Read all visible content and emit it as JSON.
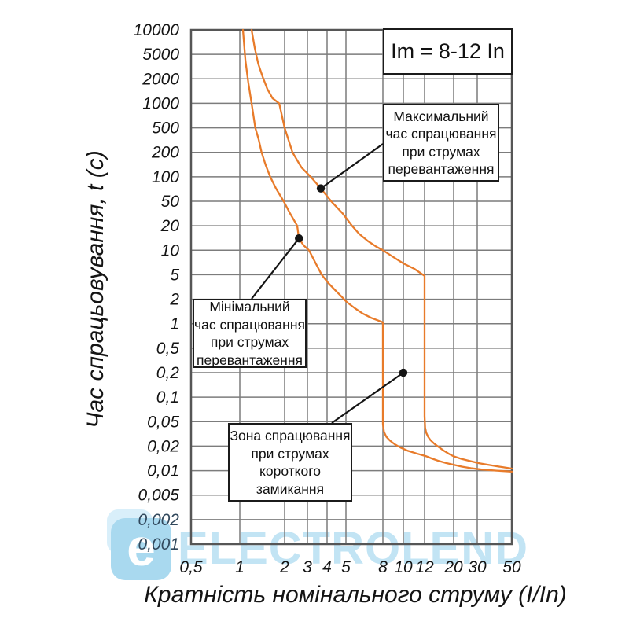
{
  "chart_data": {
    "type": "line",
    "title": "Im = 8-12 In",
    "xlabel": "Кратність номінального струму (I/In)",
    "ylabel": "Час спрацьовування, t (c)",
    "x_scale": "log",
    "y_scale": "log",
    "grid": true,
    "legend_position": "none",
    "x_tick_values": [
      0.5,
      1,
      2,
      3,
      4,
      5,
      8,
      10,
      12,
      20,
      30,
      50
    ],
    "x_tick_labels": [
      "0,5",
      "1",
      "2",
      "3",
      "4",
      "5",
      "8",
      "10",
      "12",
      "20",
      "30",
      "50"
    ],
    "y_tick_values": [
      10000,
      5000,
      2000,
      1000,
      500,
      200,
      100,
      50,
      20,
      10,
      5,
      2,
      1,
      0.5,
      0.2,
      0.1,
      0.05,
      0.02,
      0.01,
      0.005,
      0.002,
      0.001
    ],
    "y_tick_labels": [
      "10000",
      "5000",
      "2000",
      "1000",
      "500",
      "200",
      "100",
      "50",
      "20",
      "10",
      "5",
      "2",
      "1",
      "0,5",
      "0,2",
      "0,1",
      "0,05",
      "0,02",
      "0,01",
      "0,005",
      "0,002",
      "0,001"
    ],
    "tinted_y_tick_labels": [
      "0,002",
      "0,001"
    ],
    "series": [
      {
        "name": "Мінімальний час спрацювання",
        "color": "#e87b2a",
        "points": [
          [
            1.05,
            10000
          ],
          [
            1.09,
            4000
          ],
          [
            1.14,
            1800
          ],
          [
            1.2,
            1000
          ],
          [
            1.27,
            500
          ],
          [
            1.34,
            320
          ],
          [
            1.4,
            200
          ],
          [
            1.49,
            140
          ],
          [
            1.6,
            100
          ],
          [
            1.75,
            72
          ],
          [
            1.97,
            50
          ],
          [
            2.2,
            32
          ],
          [
            2.5,
            20
          ],
          [
            2.58,
            14
          ],
          [
            2.8,
            11.5
          ],
          [
            3.07,
            10
          ],
          [
            3.4,
            6.8
          ],
          [
            3.7,
            5.0
          ],
          [
            4.05,
            3.7
          ],
          [
            4.4,
            2.8
          ],
          [
            4.75,
            2.2
          ],
          [
            5.05,
            1.85
          ],
          [
            5.6,
            1.55
          ],
          [
            6.2,
            1.33
          ],
          [
            6.9,
            1.18
          ],
          [
            7.5,
            1.1
          ],
          [
            8,
            1.04
          ],
          [
            8,
            0.046
          ],
          [
            8.1,
            0.034
          ],
          [
            8.3,
            0.0285
          ],
          [
            8.65,
            0.0245
          ],
          [
            9.1,
            0.0215
          ],
          [
            9.7,
            0.0192
          ],
          [
            10.4,
            0.0175
          ],
          [
            11.3,
            0.0161
          ],
          [
            12.4,
            0.015
          ],
          [
            13.8,
            0.014
          ],
          [
            15.5,
            0.0131
          ],
          [
            17.5,
            0.0124
          ],
          [
            20,
            0.0118
          ],
          [
            23,
            0.0112
          ],
          [
            27,
            0.0107
          ],
          [
            32,
            0.0103
          ],
          [
            40,
            0.01
          ],
          [
            50,
            0.0097
          ]
        ]
      },
      {
        "name": "Максимальний час спрацювання",
        "color": "#e87b2a",
        "points": [
          [
            1.2,
            10000
          ],
          [
            1.26,
            6000
          ],
          [
            1.33,
            3500
          ],
          [
            1.42,
            2200
          ],
          [
            1.53,
            1500
          ],
          [
            1.66,
            1150
          ],
          [
            1.84,
            1000
          ],
          [
            2.0,
            500
          ],
          [
            2.3,
            200
          ],
          [
            2.7,
            130
          ],
          [
            3.15,
            100
          ],
          [
            3.65,
            72
          ],
          [
            4.2,
            50
          ],
          [
            4.8,
            32
          ],
          [
            5.4,
            20
          ],
          [
            5.9,
            16
          ],
          [
            6.6,
            13
          ],
          [
            7.3,
            11.2
          ],
          [
            8,
            10
          ],
          [
            9,
            8.2
          ],
          [
            10,
            6.9
          ],
          [
            11,
            5.9
          ],
          [
            12,
            4.8
          ],
          [
            12,
            0.058
          ],
          [
            12.12,
            0.04
          ],
          [
            12.35,
            0.033
          ],
          [
            12.75,
            0.0285
          ],
          [
            13.3,
            0.025
          ],
          [
            14.2,
            0.022
          ],
          [
            15.3,
            0.0196
          ],
          [
            16.8,
            0.0176
          ],
          [
            18.5,
            0.016
          ],
          [
            20,
            0.015
          ],
          [
            23,
            0.0139
          ],
          [
            26.5,
            0.0131
          ],
          [
            31,
            0.0123
          ],
          [
            37,
            0.0116
          ],
          [
            44,
            0.011
          ],
          [
            50,
            0.0106
          ]
        ]
      }
    ]
  },
  "threshold_box": {
    "label": "Im = 8-12 In"
  },
  "callouts": {
    "max": {
      "lines": [
        "Максимальний",
        "час спрацювання",
        "при струмах",
        "перевантаження"
      ],
      "dot": [
        3.65,
        72
      ]
    },
    "min": {
      "lines": [
        "Мінімальний",
        "час спрацювання",
        "при струмах",
        "перевантаження"
      ],
      "dot": [
        2.58,
        14
      ]
    },
    "zona": {
      "lines": [
        "Зона спрацювання",
        "при струмах",
        "короткого",
        "замикання"
      ],
      "dot": [
        10,
        0.2
      ]
    }
  },
  "watermark": {
    "text": "ELECTROLEND",
    "logo_letter": "e"
  },
  "colors": {
    "curve": "#e87b2a",
    "grid": "#7c7c7c",
    "frame": "#565656",
    "text": "#141414",
    "tinted_tick": "#31485c",
    "watermark_text": "#c2e4f4",
    "watermark_logo": "#a9d9ef"
  }
}
